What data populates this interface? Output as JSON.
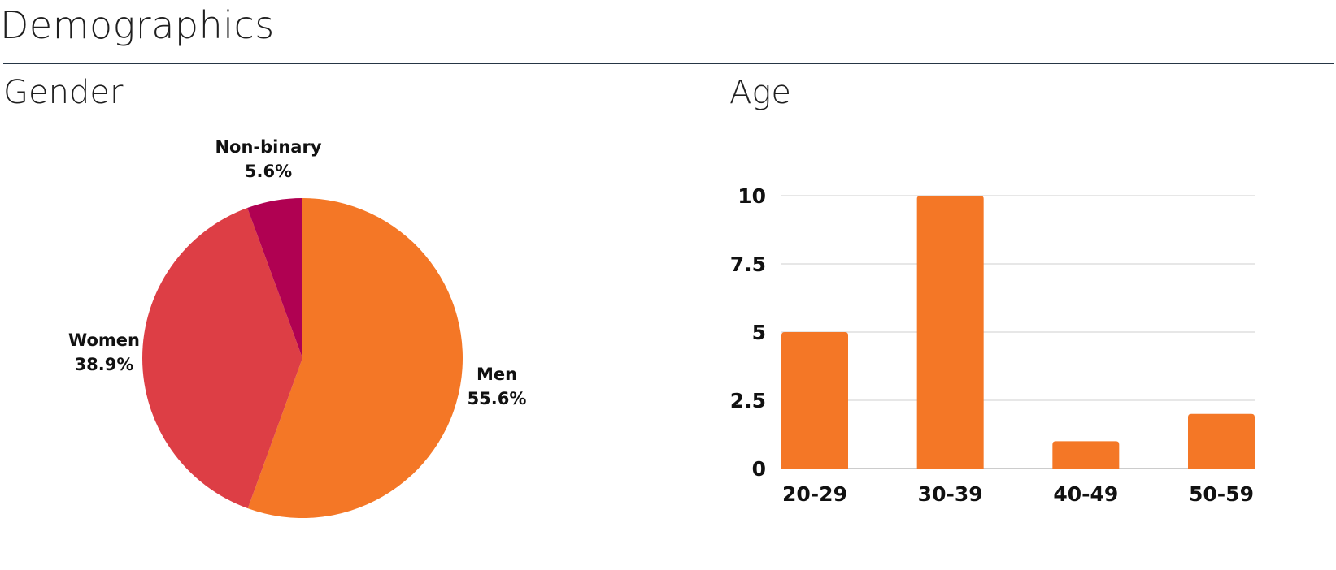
{
  "page": {
    "title": "Demographics"
  },
  "colors": {
    "men": "#F47726",
    "women": "#DD3E45",
    "non_binary": "#B00152",
    "bar": "#F47726",
    "grid": "#cfcfcf",
    "rule": "#263645"
  },
  "chart_data": [
    {
      "type": "pie",
      "title": "Gender",
      "slices": [
        {
          "label": "Men",
          "value": 55.6,
          "display": "55.6%"
        },
        {
          "label": "Women",
          "value": 38.9,
          "display": "38.9%"
        },
        {
          "label": "Non-binary",
          "value": 5.6,
          "display": "5.6%"
        }
      ],
      "start": "12 o'clock",
      "direction": "clockwise"
    },
    {
      "type": "bar",
      "title": "Age",
      "categories": [
        "20-29",
        "30-39",
        "40-49",
        "50-59"
      ],
      "values": [
        5,
        10,
        1,
        2
      ],
      "ylim": [
        0,
        10
      ],
      "yticks": [
        "0",
        "2.5",
        "5",
        "7.5",
        "10"
      ],
      "ytick_values": [
        0,
        2.5,
        5,
        7.5,
        10
      ],
      "grid": true
    }
  ]
}
